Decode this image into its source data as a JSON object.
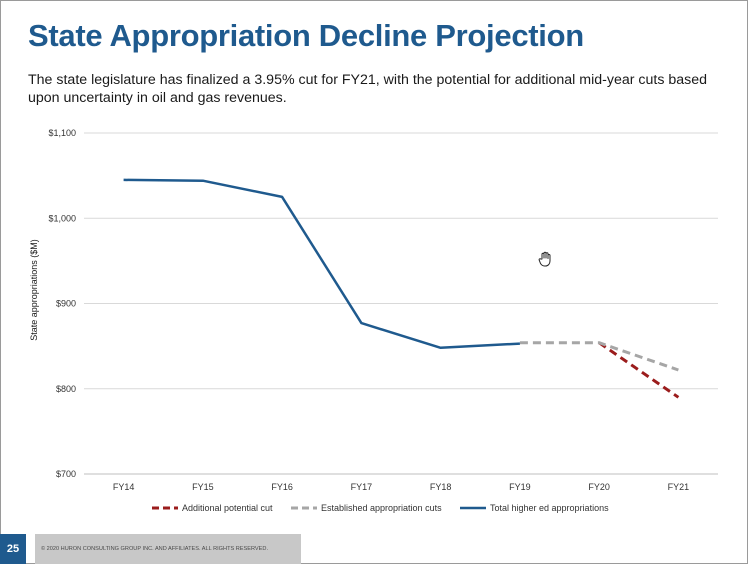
{
  "slide": {
    "title": "State Appropriation Decline Projection",
    "subtitle": "The state legislature has finalized a 3.95% cut for FY21, with the potential for additional mid-year cuts based upon uncertainty in oil and gas revenues.",
    "page_number": "25",
    "copyright": "© 2020 HURON CONSULTING GROUP INC. AND AFFILIATES. ALL RIGHTS RESERVED."
  },
  "icons": {
    "cursor": "hand-cursor-icon"
  },
  "chart_data": {
    "type": "line",
    "title": "",
    "xlabel": "",
    "ylabel": "State appropriations ($M)",
    "ylim": [
      700,
      1100
    ],
    "y_ticks": [
      700,
      800,
      900,
      1000,
      1100
    ],
    "y_tick_labels": [
      "$700",
      "$800",
      "$900",
      "$1,000",
      "$1,100"
    ],
    "categories": [
      "FY14",
      "FY15",
      "FY16",
      "FY17",
      "FY18",
      "FY19",
      "FY20",
      "FY21"
    ],
    "grid": true,
    "legend_position": "bottom",
    "series": [
      {
        "name": "Additional potential cut",
        "style": "dashed",
        "color": "#9b1c1c",
        "values": [
          null,
          null,
          null,
          null,
          null,
          null,
          854,
          790
        ]
      },
      {
        "name": "Established appropriation cuts",
        "style": "dashed",
        "color": "#a6a6a6",
        "values": [
          null,
          null,
          null,
          null,
          null,
          854,
          854,
          822
        ]
      },
      {
        "name": "Total higher ed appropriations",
        "style": "solid",
        "color": "#1f5a8e",
        "values": [
          1045,
          1044,
          1025,
          877,
          848,
          853,
          null,
          null
        ]
      }
    ]
  }
}
